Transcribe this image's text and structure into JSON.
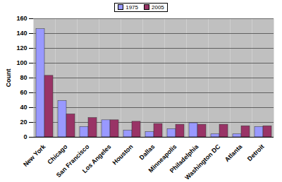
{
  "chart_data": {
    "type": "bar",
    "categories": [
      "New York",
      "Chicago",
      "San Francisco",
      "Los Angeles",
      "Houston",
      "Dallas",
      "Minneapolis",
      "Philadelphia",
      "Washington DC",
      "Atlanta",
      "Detroit"
    ],
    "series": [
      {
        "name": "1975",
        "color": "#9999ff",
        "values": [
          146,
          49,
          14,
          23,
          9,
          7,
          11,
          19,
          4,
          4,
          14
        ]
      },
      {
        "name": "2005",
        "color": "#993366",
        "values": [
          83,
          31,
          26,
          23,
          21,
          18,
          17,
          17,
          17,
          15,
          15
        ]
      }
    ],
    "y_label": "Count",
    "ylim": [
      0,
      160
    ],
    "yticks": [
      0,
      20,
      40,
      60,
      80,
      100,
      120,
      140,
      160
    ],
    "grid": true,
    "legend": "top"
  }
}
